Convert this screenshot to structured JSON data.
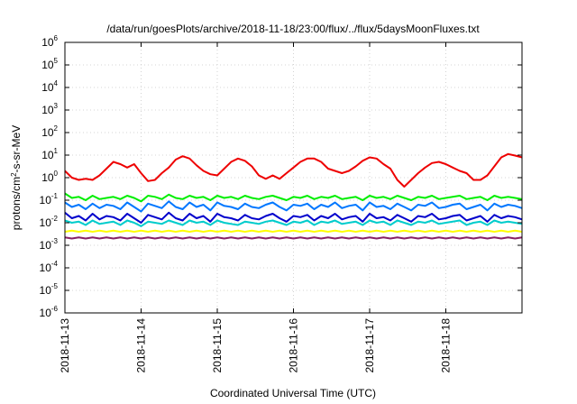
{
  "chart_data": {
    "type": "line",
    "title": "/data/run/goesPlots/archive/2018-11-18/23:00/flux/../flux/5daysMoonFluxes.txt",
    "xlabel": "Coordinated Universal Time (UTC)",
    "ylabel": {
      "base": "protons/cm",
      "sup": "2",
      "rest": "-s-sr-MeV"
    },
    "yscale": "log",
    "ylim_exp": [
      -6,
      6
    ],
    "y_tick_base": "10",
    "y_tick_exponents": [
      "-6",
      "-5",
      "-4",
      "-3",
      "-2",
      "-1",
      "0",
      "1",
      "2",
      "3",
      "4",
      "5",
      "6"
    ],
    "xlim_days": [
      0,
      6
    ],
    "x_tick_labels": [
      "2018-11-13",
      "2018-11-14",
      "2018-11-15",
      "2018-11-16",
      "2018-11-17",
      "2018-11-18"
    ],
    "grid": true,
    "series": [
      {
        "color": "#ee0000",
        "log_values": [
          0.3,
          0.0,
          -0.1,
          -0.05,
          -0.1,
          0.1,
          0.4,
          0.7,
          0.6,
          0.45,
          0.6,
          0.2,
          -0.15,
          -0.1,
          0.2,
          0.45,
          0.8,
          0.95,
          0.85,
          0.55,
          0.3,
          0.15,
          0.1,
          0.4,
          0.7,
          0.85,
          0.75,
          0.5,
          0.1,
          -0.05,
          0.1,
          -0.05,
          0.2,
          0.45,
          0.7,
          0.85,
          0.85,
          0.7,
          0.4,
          0.3,
          0.2,
          0.3,
          0.5,
          0.75,
          0.9,
          0.85,
          0.6,
          0.4,
          -0.1,
          -0.4,
          -0.1,
          0.2,
          0.45,
          0.65,
          0.7,
          0.6,
          0.45,
          0.3,
          0.2,
          -0.1,
          -0.1,
          0.1,
          0.5,
          0.9,
          1.05,
          0.98,
          0.9
        ]
      },
      {
        "color": "#00ee00",
        "log_values": [
          -0.7,
          -0.9,
          -0.85,
          -1.0,
          -0.8,
          -0.95,
          -0.9,
          -0.85,
          -0.95,
          -0.8,
          -0.9,
          -1.05,
          -0.8,
          -0.85,
          -0.95,
          -0.75,
          -0.9,
          -0.95,
          -0.8,
          -0.9,
          -0.85,
          -1.0,
          -0.8,
          -0.9,
          -0.85,
          -0.95,
          -0.8,
          -0.9,
          -0.95,
          -0.85,
          -0.8,
          -0.9,
          -1.0,
          -0.85,
          -0.9,
          -0.8,
          -0.95,
          -0.85,
          -0.9,
          -0.8,
          -0.95,
          -0.9,
          -0.85,
          -1.0,
          -0.8,
          -0.9,
          -0.85,
          -0.95,
          -0.8,
          -0.9,
          -1.0,
          -0.85,
          -0.9,
          -0.8,
          -0.95,
          -0.9,
          -0.85,
          -0.8,
          -0.95,
          -0.9,
          -0.85,
          -1.0,
          -0.8,
          -0.9,
          -0.85,
          -0.9,
          -0.95
        ]
      },
      {
        "color": "#0077ff",
        "log_values": [
          -1.1,
          -1.3,
          -1.2,
          -1.4,
          -1.15,
          -1.35,
          -1.2,
          -1.25,
          -1.4,
          -1.1,
          -1.3,
          -1.5,
          -1.15,
          -1.25,
          -1.35,
          -1.05,
          -1.3,
          -1.4,
          -1.1,
          -1.3,
          -1.2,
          -1.45,
          -1.1,
          -1.25,
          -1.3,
          -1.4,
          -1.15,
          -1.3,
          -1.35,
          -1.2,
          -1.1,
          -1.3,
          -1.45,
          -1.2,
          -1.25,
          -1.15,
          -1.4,
          -1.2,
          -1.3,
          -1.1,
          -1.35,
          -1.25,
          -1.2,
          -1.45,
          -1.1,
          -1.3,
          -1.25,
          -1.4,
          -1.15,
          -1.3,
          -1.45,
          -1.2,
          -1.25,
          -1.1,
          -1.35,
          -1.3,
          -1.2,
          -1.15,
          -1.4,
          -1.3,
          -1.2,
          -1.45,
          -1.15,
          -1.3,
          -1.2,
          -1.25,
          -1.35
        ]
      },
      {
        "color": "#0000cc",
        "log_values": [
          -1.55,
          -1.8,
          -1.7,
          -1.9,
          -1.6,
          -1.85,
          -1.7,
          -1.75,
          -1.9,
          -1.6,
          -1.8,
          -2.0,
          -1.65,
          -1.75,
          -1.85,
          -1.55,
          -1.8,
          -1.9,
          -1.6,
          -1.8,
          -1.7,
          -1.95,
          -1.6,
          -1.75,
          -1.8,
          -1.9,
          -1.65,
          -1.8,
          -1.85,
          -1.7,
          -1.6,
          -1.8,
          -1.95,
          -1.7,
          -1.75,
          -1.65,
          -1.9,
          -1.7,
          -1.8,
          -1.6,
          -1.85,
          -1.75,
          -1.7,
          -1.95,
          -1.6,
          -1.8,
          -1.75,
          -1.9,
          -1.65,
          -1.8,
          -1.95,
          -1.7,
          -1.75,
          -1.6,
          -1.85,
          -1.8,
          -1.7,
          -1.65,
          -1.9,
          -1.8,
          -1.7,
          -1.95,
          -1.65,
          -1.8,
          -1.7,
          -1.75,
          -1.85
        ]
      },
      {
        "color": "#00cccc",
        "log_values": [
          -1.9,
          -2.0,
          -1.95,
          -2.1,
          -1.9,
          -2.05,
          -2.0,
          -1.95,
          -2.1,
          -1.9,
          -2.0,
          -2.15,
          -1.95,
          -2.0,
          -2.05,
          -1.9,
          -2.0,
          -2.1,
          -1.9,
          -2.0,
          -1.95,
          -2.1,
          -1.9,
          -2.0,
          -2.05,
          -2.1,
          -1.95,
          -2.0,
          -2.05,
          -1.95,
          -1.9,
          -2.0,
          -2.1,
          -1.95,
          -2.0,
          -1.9,
          -2.1,
          -1.95,
          -2.0,
          -1.9,
          -2.05,
          -2.0,
          -1.95,
          -2.1,
          -1.9,
          -2.0,
          -1.95,
          -2.1,
          -1.9,
          -2.0,
          -2.1,
          -1.95,
          -2.0,
          -1.9,
          -2.05,
          -2.0,
          -1.95,
          -1.9,
          -2.1,
          -2.0,
          -1.95,
          -2.1,
          -1.9,
          -2.0,
          -1.95,
          -2.0,
          -2.05
        ]
      },
      {
        "color": "#ffff00",
        "log_values": [
          -2.4,
          -2.35,
          -2.4,
          -2.35,
          -2.4,
          -2.35,
          -2.4,
          -2.35,
          -2.4,
          -2.35,
          -2.4,
          -2.35,
          -2.4,
          -2.35,
          -2.4,
          -2.35,
          -2.4,
          -2.35,
          -2.4,
          -2.35,
          -2.4,
          -2.35,
          -2.4,
          -2.35,
          -2.4,
          -2.35,
          -2.4,
          -2.35,
          -2.4,
          -2.35,
          -2.4,
          -2.35,
          -2.4,
          -2.35,
          -2.4,
          -2.35,
          -2.4,
          -2.35,
          -2.4,
          -2.35,
          -2.4,
          -2.35,
          -2.4,
          -2.35,
          -2.4,
          -2.35,
          -2.4,
          -2.35,
          -2.4,
          -2.35,
          -2.4,
          -2.35,
          -2.4,
          -2.35,
          -2.4,
          -2.35,
          -2.4,
          -2.35,
          -2.4,
          -2.35,
          -2.4,
          -2.35,
          -2.4,
          -2.35,
          -2.4,
          -2.35,
          -2.4
        ]
      },
      {
        "color": "#882266",
        "log_values": [
          -2.65,
          -2.7,
          -2.65,
          -2.7,
          -2.65,
          -2.7,
          -2.65,
          -2.7,
          -2.65,
          -2.7,
          -2.65,
          -2.7,
          -2.65,
          -2.7,
          -2.65,
          -2.7,
          -2.65,
          -2.7,
          -2.65,
          -2.7,
          -2.65,
          -2.7,
          -2.65,
          -2.7,
          -2.65,
          -2.7,
          -2.65,
          -2.7,
          -2.65,
          -2.7,
          -2.65,
          -2.7,
          -2.65,
          -2.7,
          -2.65,
          -2.7,
          -2.65,
          -2.7,
          -2.65,
          -2.7,
          -2.65,
          -2.7,
          -2.65,
          -2.7,
          -2.65,
          -2.7,
          -2.65,
          -2.7,
          -2.65,
          -2.7,
          -2.65,
          -2.7,
          -2.65,
          -2.7,
          -2.65,
          -2.7,
          -2.65,
          -2.7,
          -2.65,
          -2.7,
          -2.65,
          -2.7,
          -2.65,
          -2.7,
          -2.65,
          -2.7,
          -2.65
        ]
      }
    ]
  }
}
